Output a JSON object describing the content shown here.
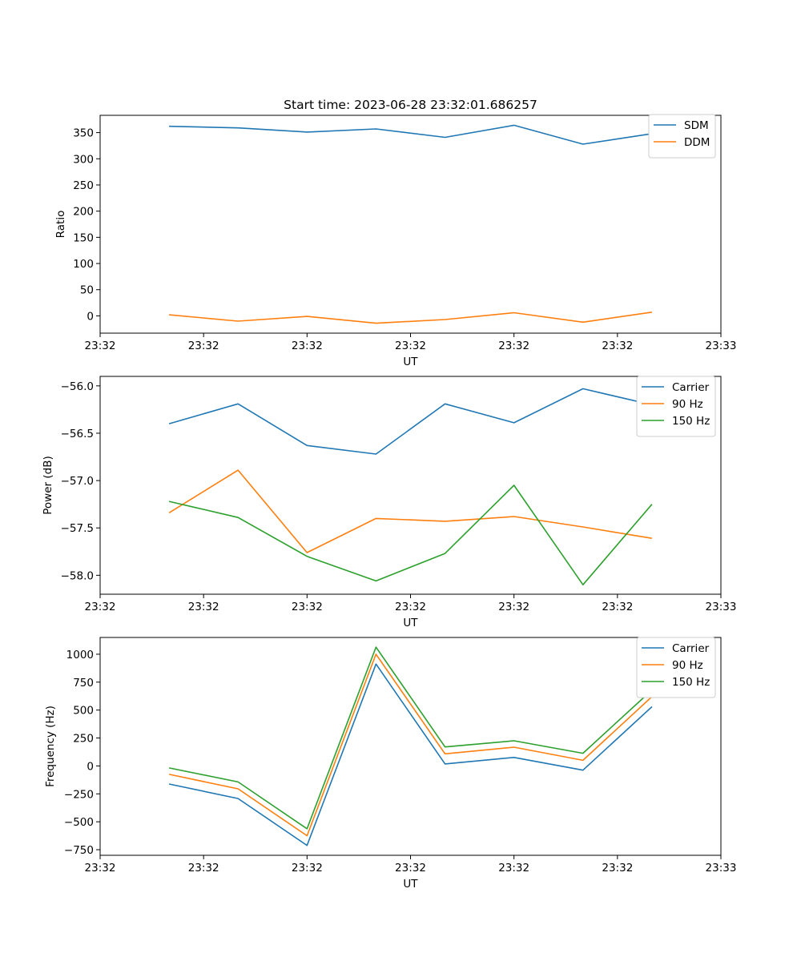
{
  "colors": {
    "blue": "#1f77b4",
    "orange": "#ff7f0e",
    "green": "#2ca02c"
  },
  "chart_data": [
    {
      "type": "line",
      "title": "Start time: 2023-06-28 23:32:01.686257",
      "xlabel": "UT",
      "ylabel": "Ratio",
      "x": [
        1,
        2,
        3,
        4,
        5,
        6,
        7,
        8
      ],
      "xlim": [
        0,
        9
      ],
      "x_ticks": [
        0,
        1.5,
        3,
        4.5,
        6,
        7.5,
        9
      ],
      "x_tick_labels": [
        "23:32",
        "23:32",
        "23:32",
        "23:32",
        "23:32",
        "23:32",
        "23:33"
      ],
      "ylim": [
        -33,
        383
      ],
      "y_ticks": [
        0,
        50,
        100,
        150,
        200,
        250,
        300,
        350
      ],
      "y_tick_labels": [
        "0",
        "50",
        "100",
        "150",
        "200",
        "250",
        "300",
        "350"
      ],
      "legend_position": "top-right",
      "series": [
        {
          "name": "SDM",
          "color": "#1f77b4",
          "values": [
            362,
            359,
            351,
            357,
            341,
            364,
            328,
            348
          ]
        },
        {
          "name": "DDM",
          "color": "#ff7f0e",
          "values": [
            2,
            -10,
            -1,
            -14,
            -7,
            6,
            -12,
            7
          ]
        }
      ]
    },
    {
      "type": "line",
      "title": "",
      "xlabel": "UT",
      "ylabel": "Power (dB)",
      "x": [
        1,
        2,
        3,
        4,
        5,
        6,
        7,
        8
      ],
      "xlim": [
        0,
        9
      ],
      "x_ticks": [
        0,
        1.5,
        3,
        4.5,
        6,
        7.5,
        9
      ],
      "x_tick_labels": [
        "23:32",
        "23:32",
        "23:32",
        "23:32",
        "23:32",
        "23:32",
        "23:33"
      ],
      "ylim": [
        -58.2,
        -55.9
      ],
      "y_ticks": [
        -58.0,
        -57.5,
        -57.0,
        -56.5,
        -56.0
      ],
      "y_tick_labels": [
        "−58.0",
        "−57.5",
        "−57.0",
        "−56.5",
        "−56.0"
      ],
      "legend_position": "top-right",
      "series": [
        {
          "name": "Carrier",
          "color": "#1f77b4",
          "values": [
            -56.4,
            -56.19,
            -56.63,
            -56.72,
            -56.19,
            -56.39,
            -56.03,
            -56.2
          ]
        },
        {
          "name": "90 Hz",
          "color": "#ff7f0e",
          "values": [
            -57.34,
            -56.89,
            -57.76,
            -57.4,
            -57.43,
            -57.38,
            -57.49,
            -57.61
          ]
        },
        {
          "name": "150 Hz",
          "color": "#2ca02c",
          "values": [
            -57.22,
            -57.39,
            -57.8,
            -58.06,
            -57.77,
            -57.05,
            -58.1,
            -57.25
          ]
        }
      ]
    },
    {
      "type": "line",
      "title": "",
      "xlabel": "UT",
      "ylabel": "Frequency (Hz)",
      "x": [
        1,
        2,
        3,
        4,
        5,
        6,
        7,
        8
      ],
      "xlim": [
        0,
        9
      ],
      "x_ticks": [
        0,
        1.5,
        3,
        4.5,
        6,
        7.5,
        9
      ],
      "x_tick_labels": [
        "23:32",
        "23:32",
        "23:32",
        "23:32",
        "23:32",
        "23:32",
        "23:33"
      ],
      "ylim": [
        -800,
        1150
      ],
      "y_ticks": [
        -750,
        -500,
        -250,
        0,
        250,
        500,
        750,
        1000
      ],
      "y_tick_labels": [
        "−750",
        "−500",
        "−250",
        "0",
        "250",
        "500",
        "750",
        "1000"
      ],
      "legend_position": "top-right",
      "series": [
        {
          "name": "Carrier",
          "color": "#1f77b4",
          "values": [
            -162,
            -292,
            -712,
            912,
            18,
            76,
            -38,
            530
          ]
        },
        {
          "name": "90 Hz",
          "color": "#ff7f0e",
          "values": [
            -75,
            -205,
            -625,
            1000,
            108,
            168,
            50,
            620
          ]
        },
        {
          "name": "150 Hz",
          "color": "#2ca02c",
          "values": [
            -18,
            -143,
            -563,
            1063,
            170,
            225,
            113,
            680
          ]
        }
      ]
    }
  ]
}
